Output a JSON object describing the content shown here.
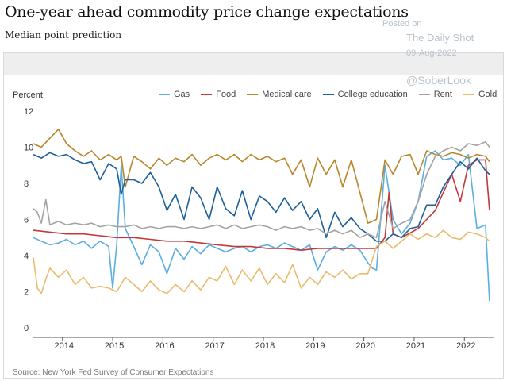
{
  "title": "One-year ahead commodity price change expectations",
  "subtitle": "Median point prediction",
  "watermark": {
    "posted_on": "Posted on",
    "site": "The Daily Shot",
    "date": "09-Aug-2022",
    "handle": "@SoberLook"
  },
  "source": "Source: New York Fed Survey of Consumer Expectations",
  "chart_data": {
    "type": "line",
    "ylabel": "Percent",
    "ylim": [
      0,
      12
    ],
    "yticks": [
      0,
      2,
      4,
      6,
      8,
      10,
      12
    ],
    "xlim": [
      2013.42,
      2022.58
    ],
    "xticks": [
      "2014",
      "2015",
      "2016",
      "2017",
      "2018",
      "2019",
      "2020",
      "2021",
      "2022"
    ],
    "grid": false,
    "legend": "top",
    "series": [
      {
        "name": "Gas",
        "color": "#5aaee0",
        "x": [
          2013.42,
          2013.58,
          2013.75,
          2013.92,
          2014.08,
          2014.25,
          2014.42,
          2014.58,
          2014.75,
          2014.92,
          2015.0,
          2015.08,
          2015.17,
          2015.25,
          2015.42,
          2015.58,
          2015.75,
          2015.92,
          2016.08,
          2016.25,
          2016.42,
          2016.58,
          2016.75,
          2016.92,
          2017.08,
          2017.25,
          2017.42,
          2017.58,
          2017.75,
          2017.92,
          2018.08,
          2018.25,
          2018.42,
          2018.58,
          2018.75,
          2018.92,
          2019.08,
          2019.25,
          2019.42,
          2019.58,
          2019.75,
          2019.92,
          2020.08,
          2020.17,
          2020.25,
          2020.42,
          2020.58,
          2020.75,
          2020.92,
          2021.08,
          2021.25,
          2021.42,
          2021.58,
          2021.75,
          2021.92,
          2022.08,
          2022.25,
          2022.42,
          2022.5
        ],
        "values": [
          5.0,
          4.8,
          4.6,
          4.7,
          4.9,
          4.6,
          4.8,
          4.4,
          4.8,
          4.5,
          2.2,
          4.6,
          9.0,
          5.5,
          4.5,
          3.5,
          4.6,
          4.2,
          3.0,
          4.4,
          3.8,
          4.5,
          4.1,
          4.6,
          4.4,
          4.2,
          4.4,
          4.5,
          4.2,
          4.5,
          4.6,
          4.4,
          4.7,
          4.5,
          4.3,
          4.6,
          3.2,
          4.2,
          4.5,
          4.3,
          4.6,
          4.3,
          3.6,
          3.3,
          3.2,
          9.0,
          6.0,
          5.2,
          5.8,
          7.0,
          9.5,
          9.8,
          9.3,
          9.4,
          9.0,
          9.6,
          5.5,
          5.7,
          1.5
        ]
      },
      {
        "name": "Food",
        "color": "#c0393b",
        "x": [
          2013.42,
          2013.75,
          2014.08,
          2014.42,
          2014.75,
          2015.08,
          2015.42,
          2015.75,
          2016.08,
          2016.42,
          2016.75,
          2017.08,
          2017.42,
          2017.75,
          2018.08,
          2018.42,
          2018.75,
          2019.08,
          2019.42,
          2019.75,
          2020.08,
          2020.25,
          2020.42,
          2020.5,
          2020.58,
          2020.75,
          2021.08,
          2021.42,
          2021.58,
          2021.75,
          2021.92,
          2022.08,
          2022.25,
          2022.42,
          2022.5
        ],
        "values": [
          5.4,
          5.3,
          5.2,
          5.2,
          5.1,
          5.0,
          5.0,
          4.9,
          4.8,
          4.8,
          4.7,
          4.6,
          4.5,
          4.5,
          4.4,
          4.4,
          4.3,
          4.4,
          4.4,
          4.4,
          4.4,
          4.4,
          5.0,
          7.5,
          5.2,
          5.0,
          5.5,
          6.5,
          7.5,
          8.5,
          7.0,
          9.0,
          9.3,
          9.3,
          6.5
        ]
      },
      {
        "name": "Medical care",
        "color": "#b8862b",
        "x": [
          2013.42,
          2013.58,
          2013.75,
          2013.92,
          2014.08,
          2014.25,
          2014.42,
          2014.58,
          2014.75,
          2014.92,
          2015.08,
          2015.17,
          2015.25,
          2015.42,
          2015.58,
          2015.75,
          2015.92,
          2016.08,
          2016.25,
          2016.42,
          2016.58,
          2016.75,
          2016.92,
          2017.08,
          2017.25,
          2017.42,
          2017.58,
          2017.75,
          2017.92,
          2018.08,
          2018.25,
          2018.42,
          2018.58,
          2018.75,
          2018.92,
          2019.08,
          2019.25,
          2019.42,
          2019.58,
          2019.75,
          2019.92,
          2020.08,
          2020.25,
          2020.42,
          2020.58,
          2020.75,
          2020.92,
          2021.08,
          2021.25,
          2021.42,
          2021.58,
          2021.75,
          2021.92,
          2022.08,
          2022.25,
          2022.42,
          2022.5
        ],
        "values": [
          10.2,
          10.0,
          10.5,
          11.0,
          10.2,
          9.8,
          9.5,
          9.8,
          9.3,
          9.6,
          9.3,
          9.5,
          7.8,
          9.5,
          9.2,
          8.8,
          9.4,
          9.0,
          9.4,
          9.2,
          9.6,
          9.0,
          9.4,
          9.6,
          9.3,
          9.6,
          9.2,
          9.6,
          9.3,
          9.5,
          9.2,
          9.4,
          8.5,
          9.3,
          7.8,
          9.4,
          8.5,
          9.3,
          7.8,
          9.3,
          7.5,
          5.8,
          6.0,
          9.3,
          8.5,
          9.5,
          9.6,
          8.5,
          9.8,
          9.6,
          9.5,
          9.7,
          9.6,
          9.4,
          9.6,
          9.5,
          9.2
        ]
      },
      {
        "name": "College education",
        "color": "#1d5f99",
        "x": [
          2013.42,
          2013.58,
          2013.75,
          2013.92,
          2014.08,
          2014.25,
          2014.42,
          2014.58,
          2014.75,
          2014.92,
          2015.08,
          2015.17,
          2015.25,
          2015.42,
          2015.58,
          2015.75,
          2015.92,
          2016.08,
          2016.25,
          2016.42,
          2016.58,
          2016.75,
          2016.92,
          2017.08,
          2017.25,
          2017.42,
          2017.58,
          2017.75,
          2017.92,
          2018.08,
          2018.25,
          2018.42,
          2018.58,
          2018.75,
          2018.92,
          2019.08,
          2019.25,
          2019.42,
          2019.58,
          2019.75,
          2019.92,
          2020.08,
          2020.25,
          2020.42,
          2020.58,
          2020.75,
          2020.92,
          2021.08,
          2021.25,
          2021.42,
          2021.58,
          2021.75,
          2021.92,
          2022.08,
          2022.25,
          2022.42,
          2022.5
        ],
        "values": [
          9.6,
          9.4,
          9.7,
          9.5,
          9.6,
          9.3,
          9.1,
          9.2,
          8.2,
          9.1,
          8.8,
          7.4,
          8.2,
          8.2,
          8.0,
          8.6,
          7.8,
          6.5,
          7.4,
          6.0,
          7.8,
          7.2,
          6.0,
          7.8,
          6.6,
          6.2,
          7.6,
          6.0,
          7.3,
          7.0,
          6.4,
          7.2,
          6.5,
          7.0,
          6.0,
          6.6,
          5.0,
          6.4,
          5.6,
          6.1,
          5.5,
          5.2,
          4.8,
          4.8,
          5.2,
          5.0,
          5.5,
          5.6,
          6.8,
          6.8,
          7.8,
          8.5,
          9.2,
          8.8,
          9.4,
          8.7,
          8.5
        ]
      },
      {
        "name": "Rent",
        "color": "#a3a3a3",
        "x": [
          2013.42,
          2013.5,
          2013.58,
          2013.67,
          2013.75,
          2013.92,
          2014.08,
          2014.25,
          2014.42,
          2014.58,
          2014.75,
          2014.92,
          2015.08,
          2015.25,
          2015.42,
          2015.58,
          2015.75,
          2015.92,
          2016.08,
          2016.25,
          2016.42,
          2016.58,
          2016.75,
          2016.92,
          2017.08,
          2017.25,
          2017.42,
          2017.58,
          2017.75,
          2017.92,
          2018.08,
          2018.25,
          2018.42,
          2018.58,
          2018.75,
          2018.92,
          2019.08,
          2019.25,
          2019.42,
          2019.58,
          2019.75,
          2019.92,
          2020.08,
          2020.25,
          2020.42,
          2020.58,
          2020.75,
          2020.92,
          2021.08,
          2021.25,
          2021.42,
          2021.58,
          2021.75,
          2021.92,
          2022.08,
          2022.25,
          2022.42,
          2022.5
        ],
        "values": [
          6.6,
          6.4,
          5.8,
          7.1,
          5.7,
          5.9,
          5.7,
          5.8,
          5.7,
          5.8,
          5.6,
          5.7,
          5.6,
          5.6,
          5.7,
          5.5,
          5.6,
          5.5,
          5.6,
          5.6,
          5.5,
          5.6,
          5.5,
          5.6,
          5.7,
          5.5,
          5.7,
          5.5,
          5.6,
          5.7,
          5.6,
          5.4,
          5.6,
          5.5,
          5.6,
          5.4,
          5.5,
          5.2,
          5.4,
          5.2,
          5.4,
          5.0,
          5.2,
          5.0,
          7.0,
          5.5,
          5.8,
          6.0,
          7.0,
          8.5,
          9.5,
          9.8,
          10.0,
          9.8,
          10.2,
          10.1,
          10.3,
          10.0
        ]
      },
      {
        "name": "Gold",
        "color": "#e9bb6c",
        "x": [
          2013.42,
          2013.5,
          2013.58,
          2013.67,
          2013.75,
          2013.92,
          2014.08,
          2014.25,
          2014.42,
          2014.58,
          2014.75,
          2014.92,
          2015.08,
          2015.25,
          2015.42,
          2015.58,
          2015.75,
          2015.92,
          2016.08,
          2016.25,
          2016.42,
          2016.58,
          2016.75,
          2016.92,
          2017.08,
          2017.25,
          2017.42,
          2017.58,
          2017.75,
          2017.92,
          2018.08,
          2018.25,
          2018.42,
          2018.58,
          2018.75,
          2018.92,
          2019.08,
          2019.25,
          2019.42,
          2019.58,
          2019.75,
          2019.92,
          2020.08,
          2020.25,
          2020.42,
          2020.58,
          2020.75,
          2020.92,
          2021.08,
          2021.25,
          2021.42,
          2021.58,
          2021.75,
          2021.92,
          2022.08,
          2022.25,
          2022.42,
          2022.5
        ],
        "values": [
          3.9,
          2.2,
          1.9,
          2.7,
          3.3,
          2.8,
          3.2,
          2.4,
          2.8,
          2.2,
          2.3,
          2.2,
          2.0,
          2.8,
          2.4,
          2.0,
          2.6,
          2.1,
          1.9,
          2.4,
          2.0,
          2.6,
          2.1,
          2.8,
          2.6,
          3.4,
          2.4,
          3.2,
          2.6,
          3.3,
          2.4,
          3.0,
          2.5,
          3.5,
          2.2,
          2.8,
          2.4,
          3.1,
          2.8,
          3.2,
          2.7,
          3.0,
          3.0,
          4.5,
          4.8,
          4.4,
          4.8,
          5.2,
          4.9,
          5.2,
          5.0,
          5.4,
          5.0,
          4.9,
          5.3,
          5.2,
          5.0,
          4.8
        ]
      }
    ]
  }
}
